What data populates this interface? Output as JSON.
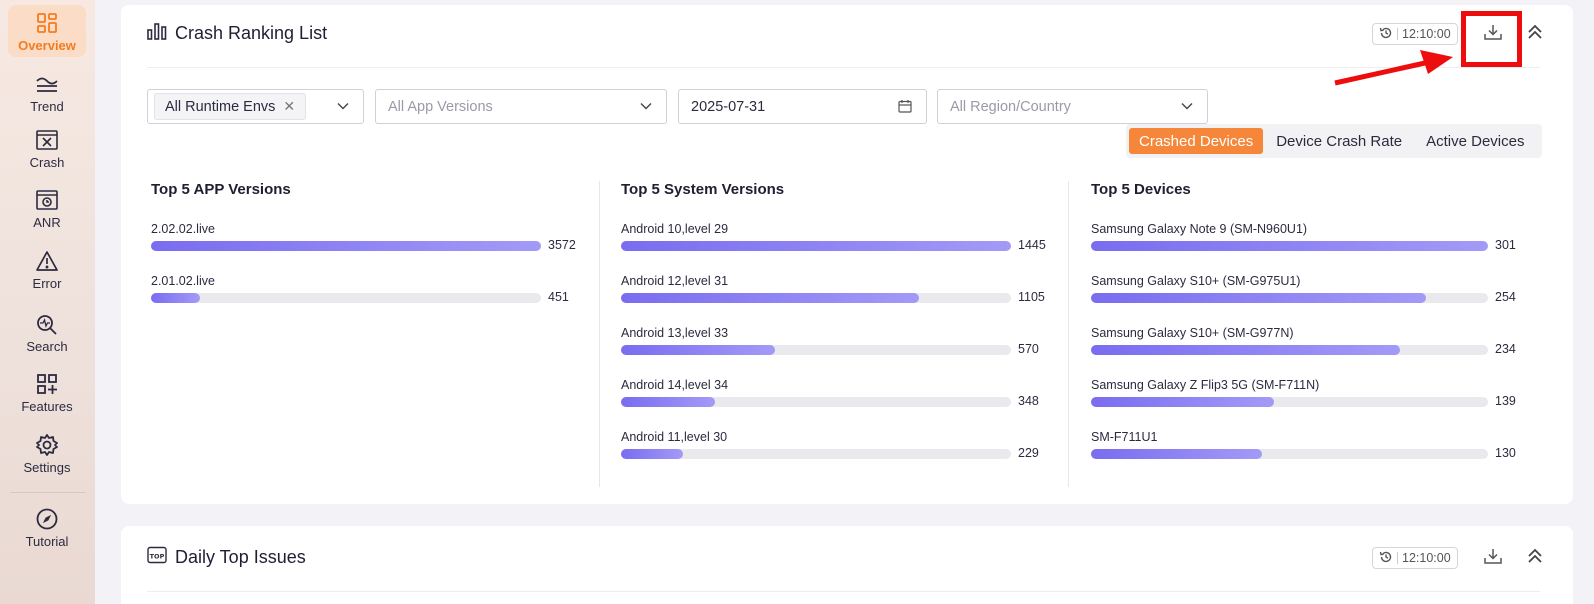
{
  "sidebar": {
    "items": [
      {
        "label": "Overview",
        "icon": "grid-icon",
        "active": true
      },
      {
        "label": "Trend",
        "icon": "trend-icon"
      },
      {
        "label": "Crash",
        "icon": "crash-icon"
      },
      {
        "label": "ANR",
        "icon": "anr-icon"
      },
      {
        "label": "Error",
        "icon": "warning-icon"
      },
      {
        "label": "Search",
        "icon": "search-icon"
      },
      {
        "label": "Features",
        "icon": "features-icon"
      },
      {
        "label": "Settings",
        "icon": "gear-icon"
      },
      {
        "label": "Tutorial",
        "icon": "compass-icon"
      }
    ]
  },
  "crash_ranking": {
    "title": "Crash Ranking List",
    "time": "12:10:00",
    "filters": {
      "runtime_env_tag": "All Runtime Envs",
      "app_versions_placeholder": "All App Versions",
      "date": "2025-07-31",
      "region_placeholder": "All Region/Country"
    },
    "toggle": {
      "options": [
        "Crashed Devices",
        "Device Crash Rate",
        "Active Devices"
      ],
      "selected": "Crashed Devices"
    },
    "columns": [
      {
        "title": "Top 5 APP Versions",
        "max": 3572,
        "rows": [
          {
            "label": "2.02.02.live",
            "value": 3572
          },
          {
            "label": "2.01.02.live",
            "value": 451
          }
        ]
      },
      {
        "title": "Top 5 System Versions",
        "max": 1445,
        "rows": [
          {
            "label": "Android 10,level 29",
            "value": 1445
          },
          {
            "label": "Android 12,level 31",
            "value": 1105
          },
          {
            "label": "Android 13,level 33",
            "value": 570
          },
          {
            "label": "Android 14,level 34",
            "value": 348
          },
          {
            "label": "Android 11,level 30",
            "value": 229
          }
        ]
      },
      {
        "title": "Top 5 Devices",
        "max": 301,
        "rows": [
          {
            "label": "Samsung Galaxy Note 9 (SM-N960U1)",
            "value": 301
          },
          {
            "label": "Samsung Galaxy S10+ (SM-G975U1)",
            "value": 254
          },
          {
            "label": "Samsung Galaxy S10+ (SM-G977N)",
            "value": 234
          },
          {
            "label": "Samsung Galaxy Z Flip3 5G (SM-F711N)",
            "value": 139
          },
          {
            "label": "SM-F711U1",
            "value": 130
          }
        ]
      }
    ]
  },
  "daily_top_issues": {
    "title": "Daily Top Issues",
    "time": "12:10:00"
  },
  "colors": {
    "accent": "#f6873a",
    "bar": "#7a6cf0",
    "annotation": "#ee0d0d"
  }
}
